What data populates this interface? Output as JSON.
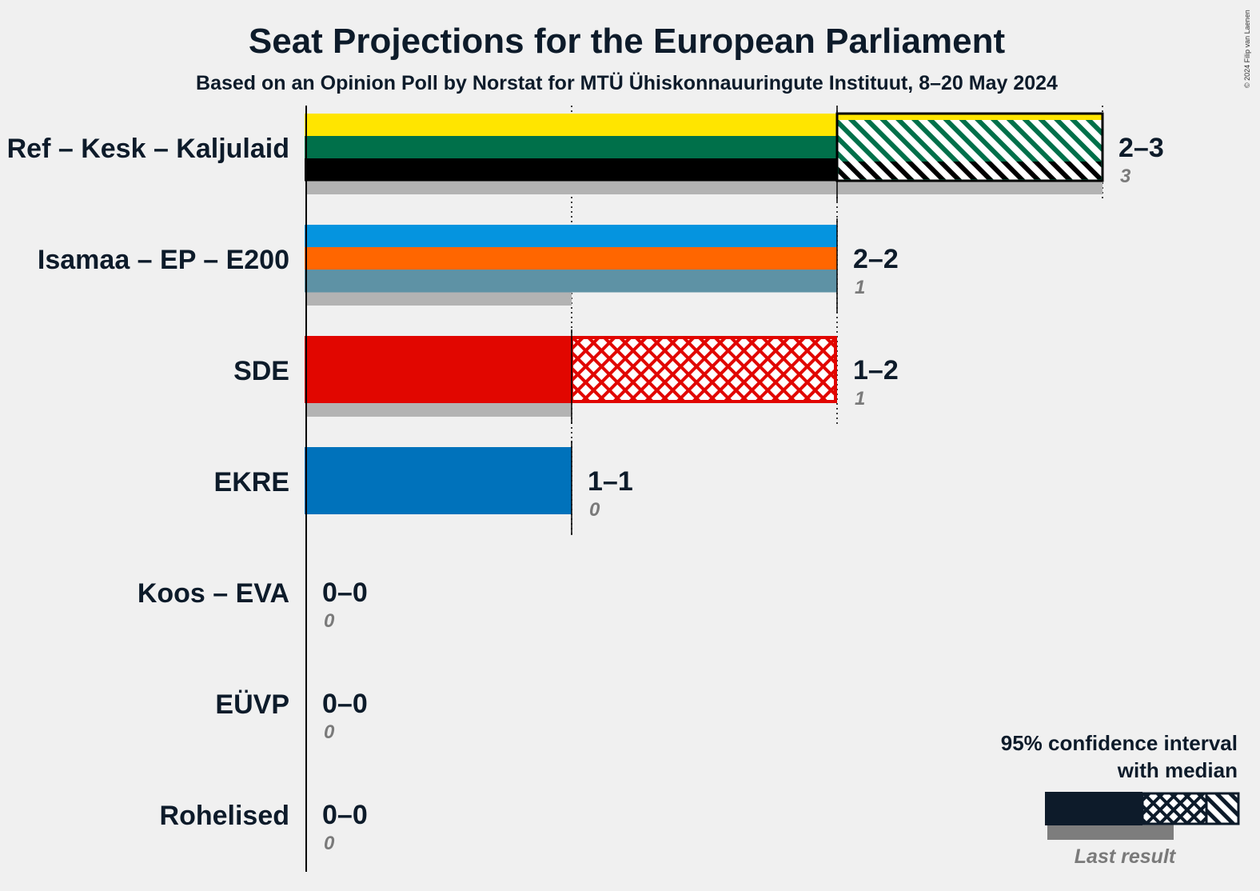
{
  "chart_data": {
    "type": "bar",
    "title": "Seat Projections for the European Parliament",
    "subtitle": "Based on an Opinion Poll by Norstat for MTÜ Ühiskonnauuringute Instituut, 8–20 May 2024",
    "copyright": "© 2024 Filip van Laenen",
    "xlim": [
      0,
      3
    ],
    "parties": [
      {
        "name": "Ref – Kesk – Kaljulaid",
        "low": 2,
        "median": 2,
        "high": 3,
        "last": 3,
        "range_label": "2–3",
        "last_label": "3",
        "colors": [
          "#FFE500",
          "#00704A",
          "#000000"
        ]
      },
      {
        "name": "Isamaa – EP – E200",
        "low": 2,
        "median": 2,
        "high": 2,
        "last": 1,
        "range_label": "2–2",
        "last_label": "1",
        "colors": [
          "#0594DF",
          "#FF6600",
          "#5E92A5"
        ]
      },
      {
        "name": "SDE",
        "low": 1,
        "median": 1,
        "high": 2,
        "last": 1,
        "range_label": "1–2",
        "last_label": "1",
        "colors": [
          "#E10600"
        ]
      },
      {
        "name": "EKRE",
        "low": 1,
        "median": 1,
        "high": 1,
        "last": 0,
        "range_label": "1–1",
        "last_label": "0",
        "colors": [
          "#0072BB"
        ]
      },
      {
        "name": "Koos – EVA",
        "low": 0,
        "median": 0,
        "high": 0,
        "last": 0,
        "range_label": "0–0",
        "last_label": "0",
        "colors": [
          "#888888"
        ]
      },
      {
        "name": "EÜVP",
        "low": 0,
        "median": 0,
        "high": 0,
        "last": 0,
        "range_label": "0–0",
        "last_label": "0",
        "colors": [
          "#888888"
        ]
      },
      {
        "name": "Rohelised",
        "low": 0,
        "median": 0,
        "high": 0,
        "last": 0,
        "range_label": "0–0",
        "last_label": "0",
        "colors": [
          "#888888"
        ]
      }
    ],
    "legend": {
      "line1": "95% confidence interval",
      "line2": "with median",
      "last_result": "Last result",
      "placement": "bottom-right"
    }
  }
}
